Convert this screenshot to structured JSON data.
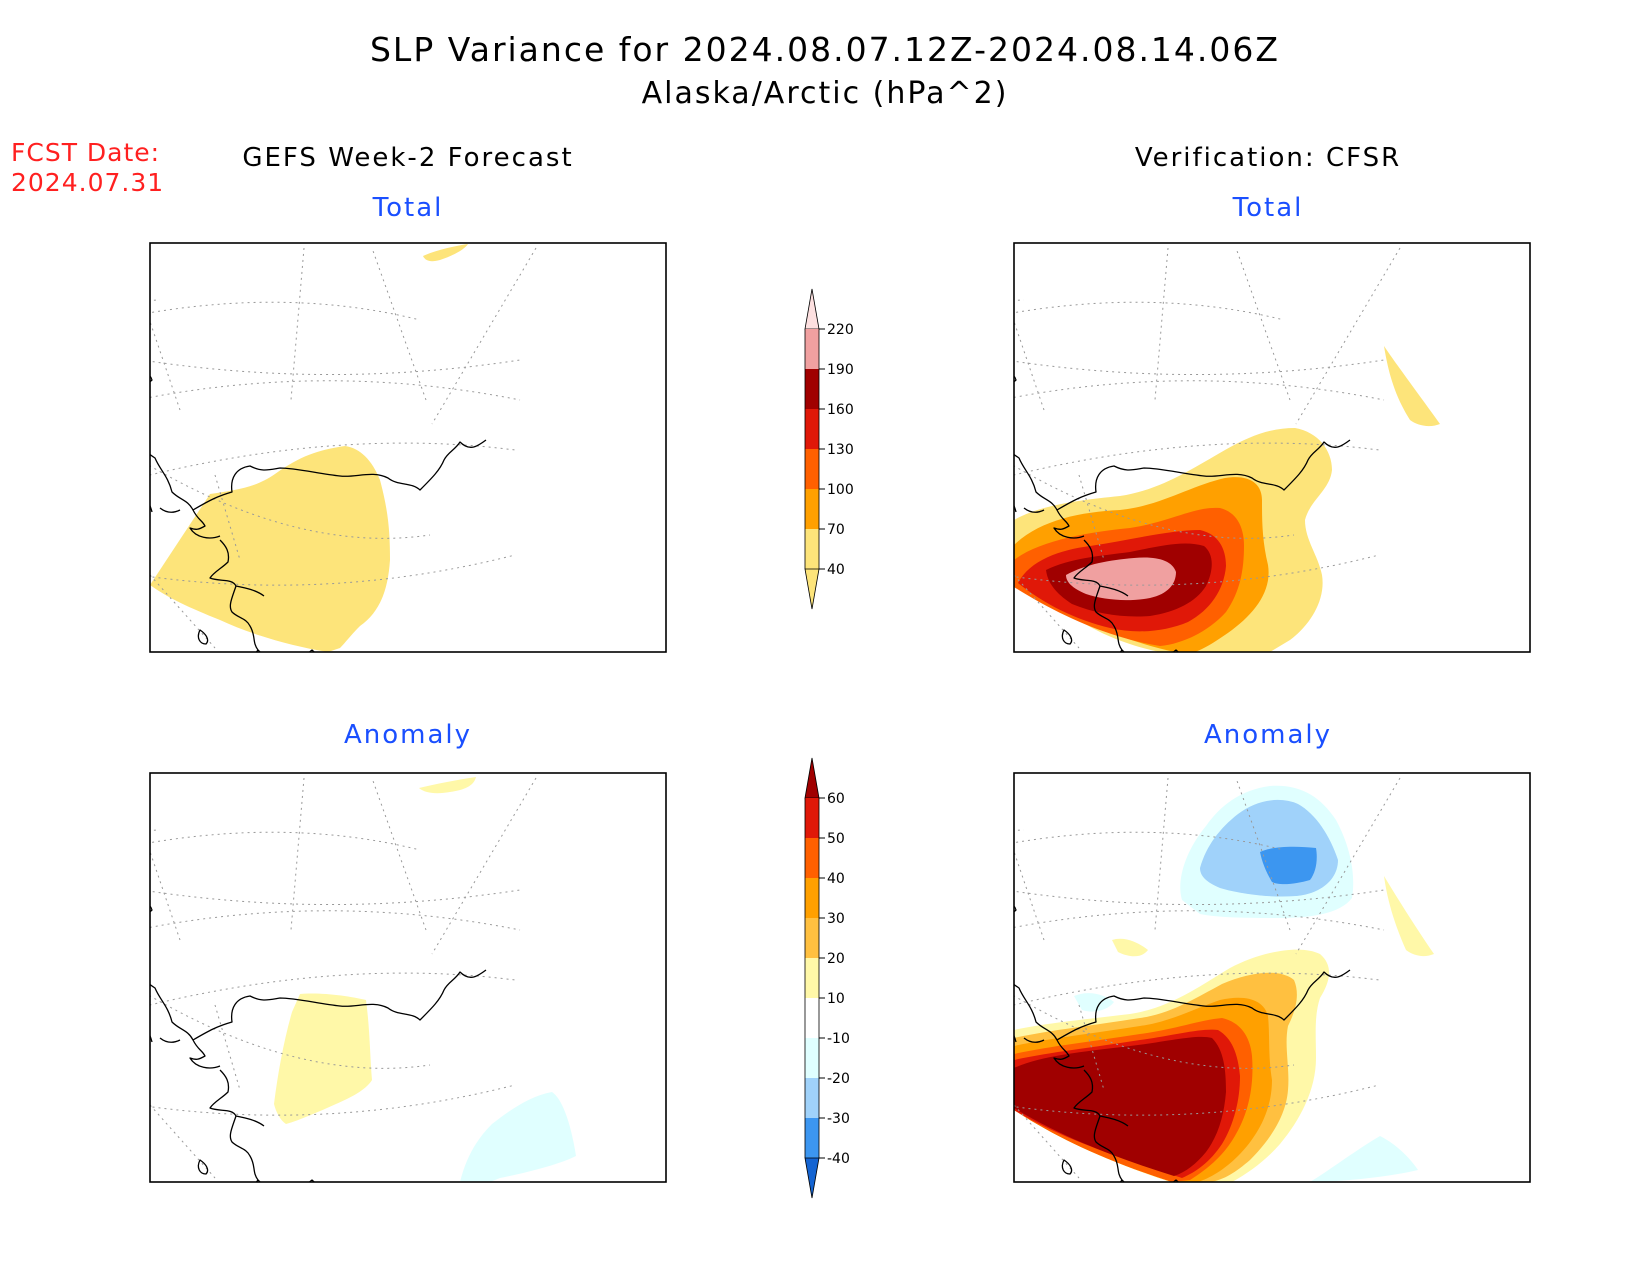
{
  "header": {
    "title": "SLP Variance for 2024.08.07.12Z-2024.08.14.06Z",
    "subtitle": "Alaska/Arctic (hPa^2)",
    "fcst_label": "FCST Date:",
    "fcst_value": "2024.07.31",
    "left_column": "GEFS Week-2 Forecast",
    "right_column": "Verification: CFSR"
  },
  "panels": {
    "forecast_total": {
      "title": "Total"
    },
    "verification_total": {
      "title": "Total"
    },
    "forecast_anomaly": {
      "title": "Anomaly"
    },
    "verification_anomaly": {
      "title": "Anomaly"
    }
  },
  "colorbars": {
    "total": {
      "levels": [
        "220",
        "190",
        "160",
        "130",
        "100",
        "70",
        "40"
      ],
      "colors": [
        "#fde0e0",
        "#f0a0a0",
        "#a00000",
        "#e01808",
        "#ff6000",
        "#ffa000",
        "#fde47a"
      ]
    },
    "anomaly": {
      "levels": [
        "60",
        "50",
        "40",
        "30",
        "20",
        "10",
        "-10",
        "-20",
        "-30",
        "-40"
      ],
      "colors": [
        "#a00000",
        "#e01808",
        "#ff6000",
        "#ffa000",
        "#ffc040",
        "#fff8a8",
        "#ffffff",
        "#e0ffff",
        "#a0d2fa",
        "#3c96f0",
        "#1464d2"
      ]
    }
  },
  "legend_colors": {
    "yellow": "#fde47a",
    "orange": "#ffa000",
    "dark_orange": "#ff6000",
    "red": "#e01808",
    "dark_red": "#a00000",
    "pink": "#f0a0a0",
    "light_yellow": "#fff8a8",
    "light_cyan": "#e0ffff",
    "light_blue": "#a0d2fa",
    "blue": "#3c96f0"
  }
}
